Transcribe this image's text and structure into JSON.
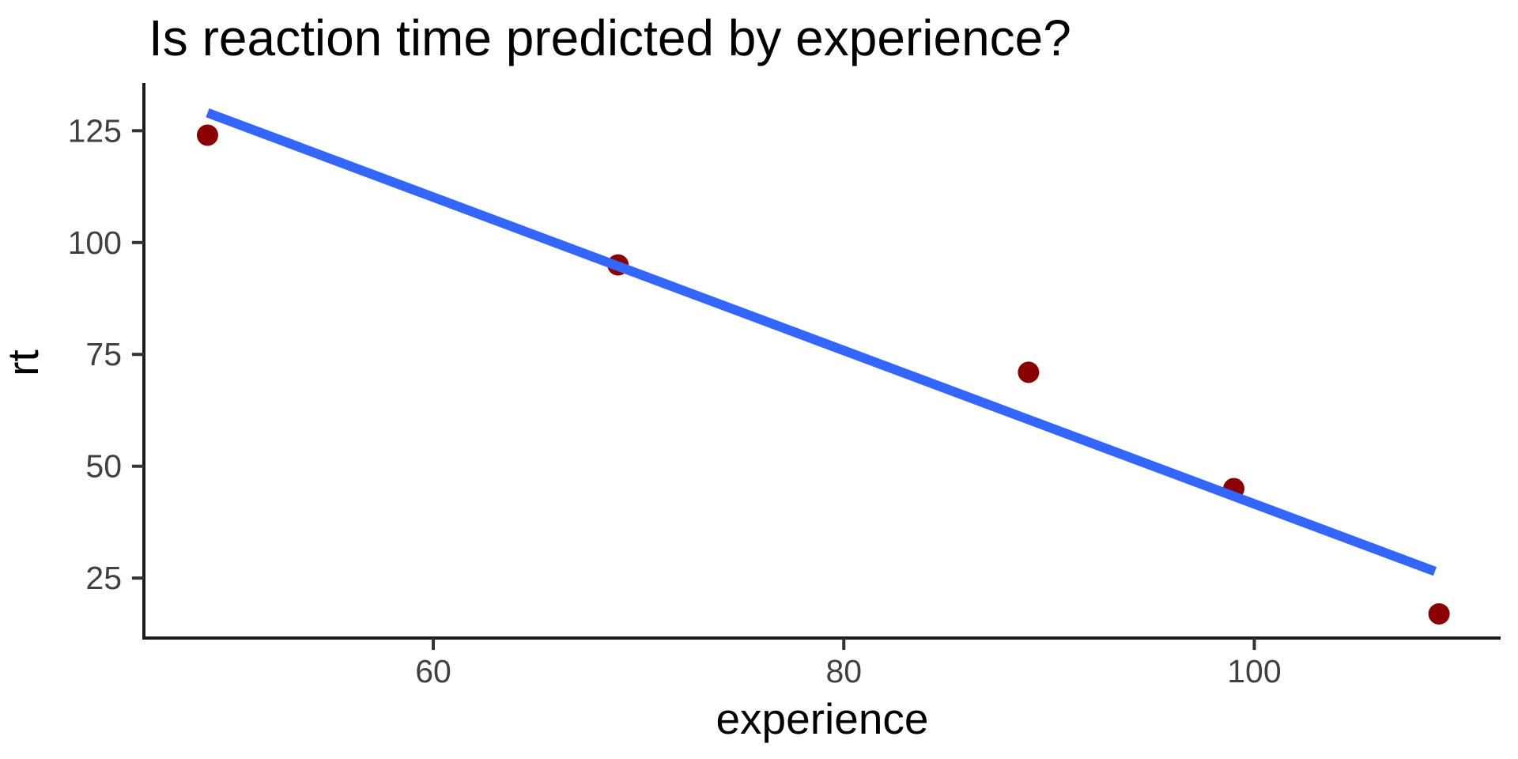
{
  "chart_data": {
    "type": "scatter",
    "title": "Is reaction time predicted by experience?",
    "xlabel": "experience",
    "ylabel": "rt",
    "points": {
      "x": [
        49,
        69,
        89,
        99,
        109
      ],
      "y": [
        124,
        95,
        71,
        45,
        17
      ]
    },
    "trend_line": {
      "x1": 49,
      "y1": 129,
      "x2": 108.8,
      "y2": 26.5
    },
    "x_ticks": [
      60,
      80,
      100
    ],
    "y_ticks": [
      25,
      50,
      75,
      100,
      125
    ],
    "xlim": [
      45.9,
      112.0
    ],
    "ylim": [
      11.6,
      134.6
    ],
    "grid": false,
    "legend": "none",
    "colors": {
      "point": "#8B0000",
      "line": "#3366FF",
      "axis": "#1a1a1a",
      "tick": "#333333",
      "tick_text": "#404040",
      "background": "#ffffff"
    }
  }
}
